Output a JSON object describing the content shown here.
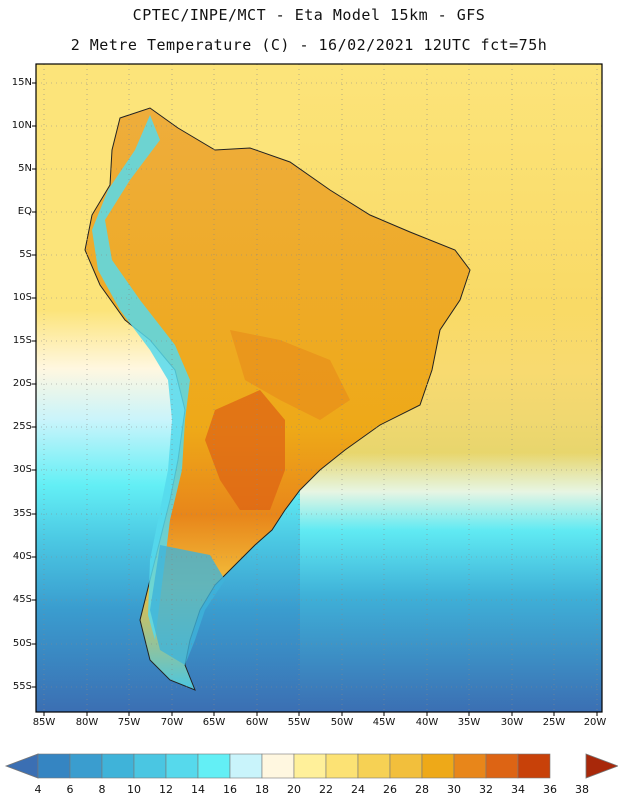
{
  "header": {
    "line1": "CPTEC/INPE/MCT -  Eta Model 15km - GFS",
    "line2": "2 Metre Temperature (C) - 16/02/2021 12UTC fct=75h"
  },
  "map": {
    "region": "South America",
    "lat_labels": [
      "15N",
      "10N",
      "5N",
      "EQ",
      "5S",
      "10S",
      "15S",
      "20S",
      "25S",
      "30S",
      "35S",
      "40S",
      "45S",
      "50S",
      "55S"
    ],
    "lon_labels": [
      "85W",
      "80W",
      "75W",
      "70W",
      "65W",
      "60W",
      "55W",
      "50W",
      "45W",
      "40W",
      "35W",
      "30W",
      "25W",
      "20W"
    ],
    "lat_range": [
      15,
      -57
    ],
    "lon_range": [
      -86,
      -20
    ],
    "grid": true
  },
  "colorbar": {
    "labels": [
      "4",
      "6",
      "8",
      "10",
      "12",
      "14",
      "16",
      "18",
      "20",
      "22",
      "24",
      "26",
      "28",
      "30",
      "32",
      "34",
      "36",
      "38"
    ],
    "colors": [
      "#3b6fb3",
      "#3585c2",
      "#3a9dcf",
      "#3fb3d9",
      "#4ac6e2",
      "#56d9ec",
      "#63eff5",
      "#c9f4fb",
      "#fff7e0",
      "#fff09a",
      "#fce274",
      "#f6d154",
      "#f2bf3c",
      "#eea918",
      "#e8861a",
      "#dd6414",
      "#c84109",
      "#a8280a"
    ]
  }
}
